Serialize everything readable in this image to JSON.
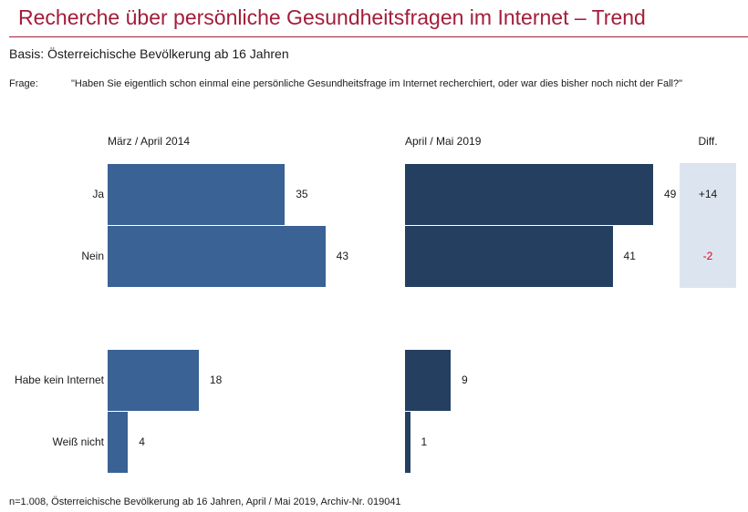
{
  "header": {
    "title": "Recherche über persönliche Gesundheitsfragen im Internet – Trend",
    "basis_label": "Basis:",
    "basis_text": "Österreichische Bevölkerung ab 16 Jahren",
    "frage_label": "Frage:",
    "frage_text": "\"Haben Sie eigentlich schon einmal eine persönliche Gesundheitsfrage im Internet recherchiert, oder war dies bisher noch nicht der Fall?\""
  },
  "colors": {
    "title": "#a31d3a",
    "bar_2014": "#3a6294",
    "bar_2019": "#253f61",
    "diff_background": "#dce5ef",
    "diff_negative": "#e0001a"
  },
  "chart_data": {
    "type": "bar",
    "orientation": "horizontal",
    "categories": [
      "Ja",
      "Nein",
      "Habe kein Internet",
      "Weiß nicht"
    ],
    "series": [
      {
        "name": "März / April 2014",
        "values": [
          35,
          43,
          18,
          4
        ]
      },
      {
        "name": "April / Mai 2019",
        "values": [
          49,
          41,
          9,
          1
        ]
      }
    ],
    "diff_header": "Diff.",
    "diff": [
      {
        "category": "Ja",
        "value": "+14"
      },
      {
        "category": "Nein",
        "value": "-2"
      }
    ],
    "xlim": [
      0,
      100
    ]
  },
  "footer": {
    "text": "n=1.008, Österreichische Bevölkerung ab 16 Jahren, April / Mai 2019, Archiv-Nr. 019041"
  }
}
